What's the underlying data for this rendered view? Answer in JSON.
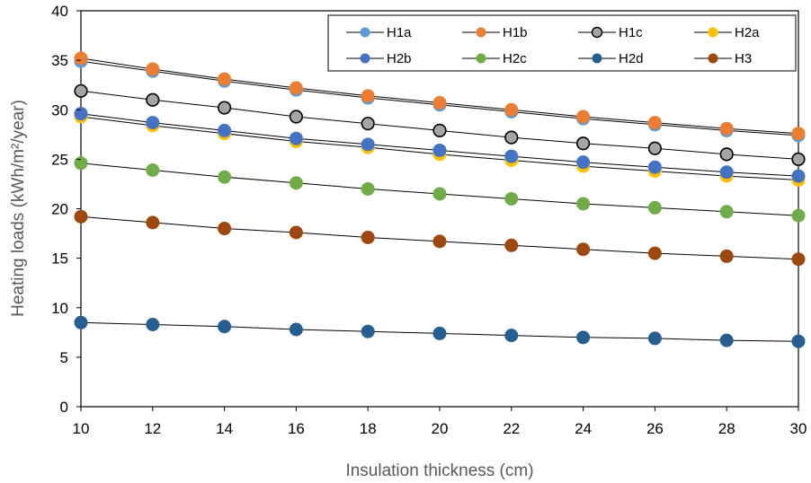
{
  "chart_data": {
    "type": "line",
    "title": "",
    "xlabel": "Insulation thickness (cm)",
    "ylabel": "Heating loads (kWh/m²/year)",
    "x": [
      10,
      12,
      14,
      16,
      18,
      20,
      22,
      24,
      26,
      28,
      30
    ],
    "xlim": [
      10,
      30
    ],
    "ylim": [
      0,
      40
    ],
    "xticks": [
      10,
      12,
      14,
      16,
      18,
      20,
      22,
      24,
      26,
      28,
      30
    ],
    "yticks": [
      0,
      5,
      10,
      15,
      20,
      25,
      30,
      35,
      40
    ],
    "grid": false,
    "legend_position": "top-right",
    "markers": "circle",
    "series": [
      {
        "name": "H1a",
        "color": "#5B9BD5",
        "values": [
          34.9,
          33.9,
          32.9,
          32.0,
          31.2,
          30.5,
          29.8,
          29.1,
          28.5,
          27.9,
          27.4
        ]
      },
      {
        "name": "H1b",
        "color": "#ED7D31",
        "values": [
          35.2,
          34.1,
          33.1,
          32.2,
          31.4,
          30.7,
          30.0,
          29.3,
          28.7,
          28.1,
          27.6
        ]
      },
      {
        "name": "H1c",
        "color": "#A5A5A5",
        "stroke": "#000000",
        "values": [
          31.9,
          31.0,
          30.2,
          29.3,
          28.6,
          27.9,
          27.2,
          26.6,
          26.1,
          25.5,
          25.0
        ]
      },
      {
        "name": "H2a",
        "color": "#FFC000",
        "values": [
          29.3,
          28.4,
          27.6,
          26.8,
          26.2,
          25.5,
          24.9,
          24.3,
          23.8,
          23.3,
          22.9
        ]
      },
      {
        "name": "H2b",
        "color": "#4472C4",
        "values": [
          29.6,
          28.7,
          27.9,
          27.1,
          26.5,
          25.9,
          25.3,
          24.7,
          24.2,
          23.7,
          23.3
        ]
      },
      {
        "name": "H2c",
        "color": "#70AD47",
        "values": [
          24.6,
          23.9,
          23.2,
          22.6,
          22.0,
          21.5,
          21.0,
          20.5,
          20.1,
          19.7,
          19.3
        ]
      },
      {
        "name": "H2d",
        "color": "#255E91",
        "values": [
          8.5,
          8.3,
          8.1,
          7.8,
          7.6,
          7.4,
          7.2,
          7.0,
          6.9,
          6.7,
          6.6
        ]
      },
      {
        "name": "H3",
        "color": "#9E480E",
        "values": [
          19.2,
          18.6,
          18.0,
          17.6,
          17.1,
          16.7,
          16.3,
          15.9,
          15.5,
          15.2,
          14.9
        ]
      }
    ]
  }
}
